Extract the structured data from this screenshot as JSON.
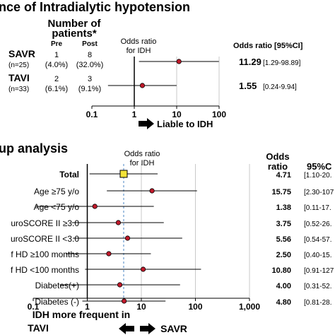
{
  "chart_data": [
    {
      "type": "forest",
      "title": "nce of Intradialytic hypotension",
      "header_patients": [
        "Number of",
        "patients*"
      ],
      "header_pre": "Pre",
      "header_post": "Post",
      "axis_header": [
        "Odds ratio",
        "for IDH"
      ],
      "or_header": "Odds ratio [95%CI]",
      "scale": "log10",
      "xlim": [
        0.1,
        100
      ],
      "ticks": [
        {
          "value": 0.1,
          "label": "0.1"
        },
        {
          "value": 1,
          "label": "1"
        },
        {
          "value": 10,
          "label": "10"
        },
        {
          "value": 100,
          "label": "100"
        }
      ],
      "arrow_label": "Liable to IDH",
      "rows": [
        {
          "group": "SAVR",
          "n": "(n=25)",
          "pre": "1",
          "pre_pct": "(4.0%)",
          "post": "8",
          "post_pct": "(32.0%)",
          "or": 11.29,
          "lo": 1.29,
          "hi": 98.89,
          "or_text": "11.29",
          "ci_text": "[1.29-98.89]"
        },
        {
          "group": "TAVI",
          "n": "(n=33)",
          "pre": "2",
          "pre_pct": "(6.1%)",
          "post": "3",
          "post_pct": "(9.1%)",
          "or": 1.55,
          "lo": 0.24,
          "hi": 9.94,
          "or_text": "1.55",
          "ci_text": "[0.24-9.94]"
        }
      ]
    },
    {
      "type": "forest",
      "title": "up analysis",
      "axis_header": [
        "Odds ratio",
        "for IDH"
      ],
      "or_header": [
        "Odds",
        "ratio"
      ],
      "ci_header": "95%C",
      "scale": "log10",
      "xlim": [
        0.1,
        1000
      ],
      "ticks": [
        {
          "value": 0.1,
          "label": "0.1"
        },
        {
          "value": 1,
          "label": "1"
        },
        {
          "value": 10,
          "label": "10"
        },
        {
          "value": 100,
          "label": "100"
        },
        {
          "value": 1000,
          "label": "1,000"
        }
      ],
      "reference_or": 4.71,
      "bottom_label": "IDH more frequent in",
      "left_arrow_label": "TAVI",
      "right_arrow_label": "SAVR",
      "rows": [
        {
          "label": "Total",
          "bold": true,
          "or": 4.71,
          "lo": 1.1,
          "hi": 20,
          "or_text": "4.71",
          "ci_text": "[1.10-20.",
          "marker": "square"
        },
        {
          "label": "Age ≥75 y/o",
          "or": 15.75,
          "lo": 2.3,
          "hi": 107,
          "or_text": "15.75",
          "ci_text": "[2.30-107",
          "marker": "circle"
        },
        {
          "label": "Age <75 y/o",
          "or": 1.38,
          "lo": 0.11,
          "hi": 17,
          "or_text": "1.38",
          "ci_text": "[0.11-17.",
          "marker": "circle"
        },
        {
          "label": "uroSCORE II ≥3.0",
          "or": 3.75,
          "lo": 0.52,
          "hi": 26,
          "or_text": "3.75",
          "ci_text": "[0.52-26.",
          "marker": "circle"
        },
        {
          "label": "uroSCORE II <3.0",
          "or": 5.56,
          "lo": 0.54,
          "hi": 57,
          "or_text": "5.56",
          "ci_text": "[0.54-57.",
          "marker": "circle"
        },
        {
          "label": "f HD ≥100 months",
          "or": 2.5,
          "lo": 0.4,
          "hi": 15,
          "or_text": "2.50",
          "ci_text": "[0.40-15.",
          "marker": "circle"
        },
        {
          "label": "f HD <100 months",
          "or": 10.8,
          "lo": 0.91,
          "hi": 127,
          "or_text": "10.80",
          "ci_text": "[0.91-127",
          "marker": "circle"
        },
        {
          "label": "Diabetes(+)",
          "or": 4.0,
          "lo": 0.31,
          "hi": 52,
          "or_text": "4.00",
          "ci_text": "[0.31-52.",
          "marker": "circle"
        },
        {
          "label": "Diabetes (-)",
          "or": 4.8,
          "lo": 0.81,
          "hi": 28,
          "or_text": "4.80",
          "ci_text": "[0.81-28.",
          "marker": "circle"
        }
      ]
    }
  ],
  "colors": {
    "marker_circle": "#c0192a",
    "marker_square": "#f3e33a",
    "reference_line": "#4a86c5",
    "gridline": "#c9c9c9"
  }
}
